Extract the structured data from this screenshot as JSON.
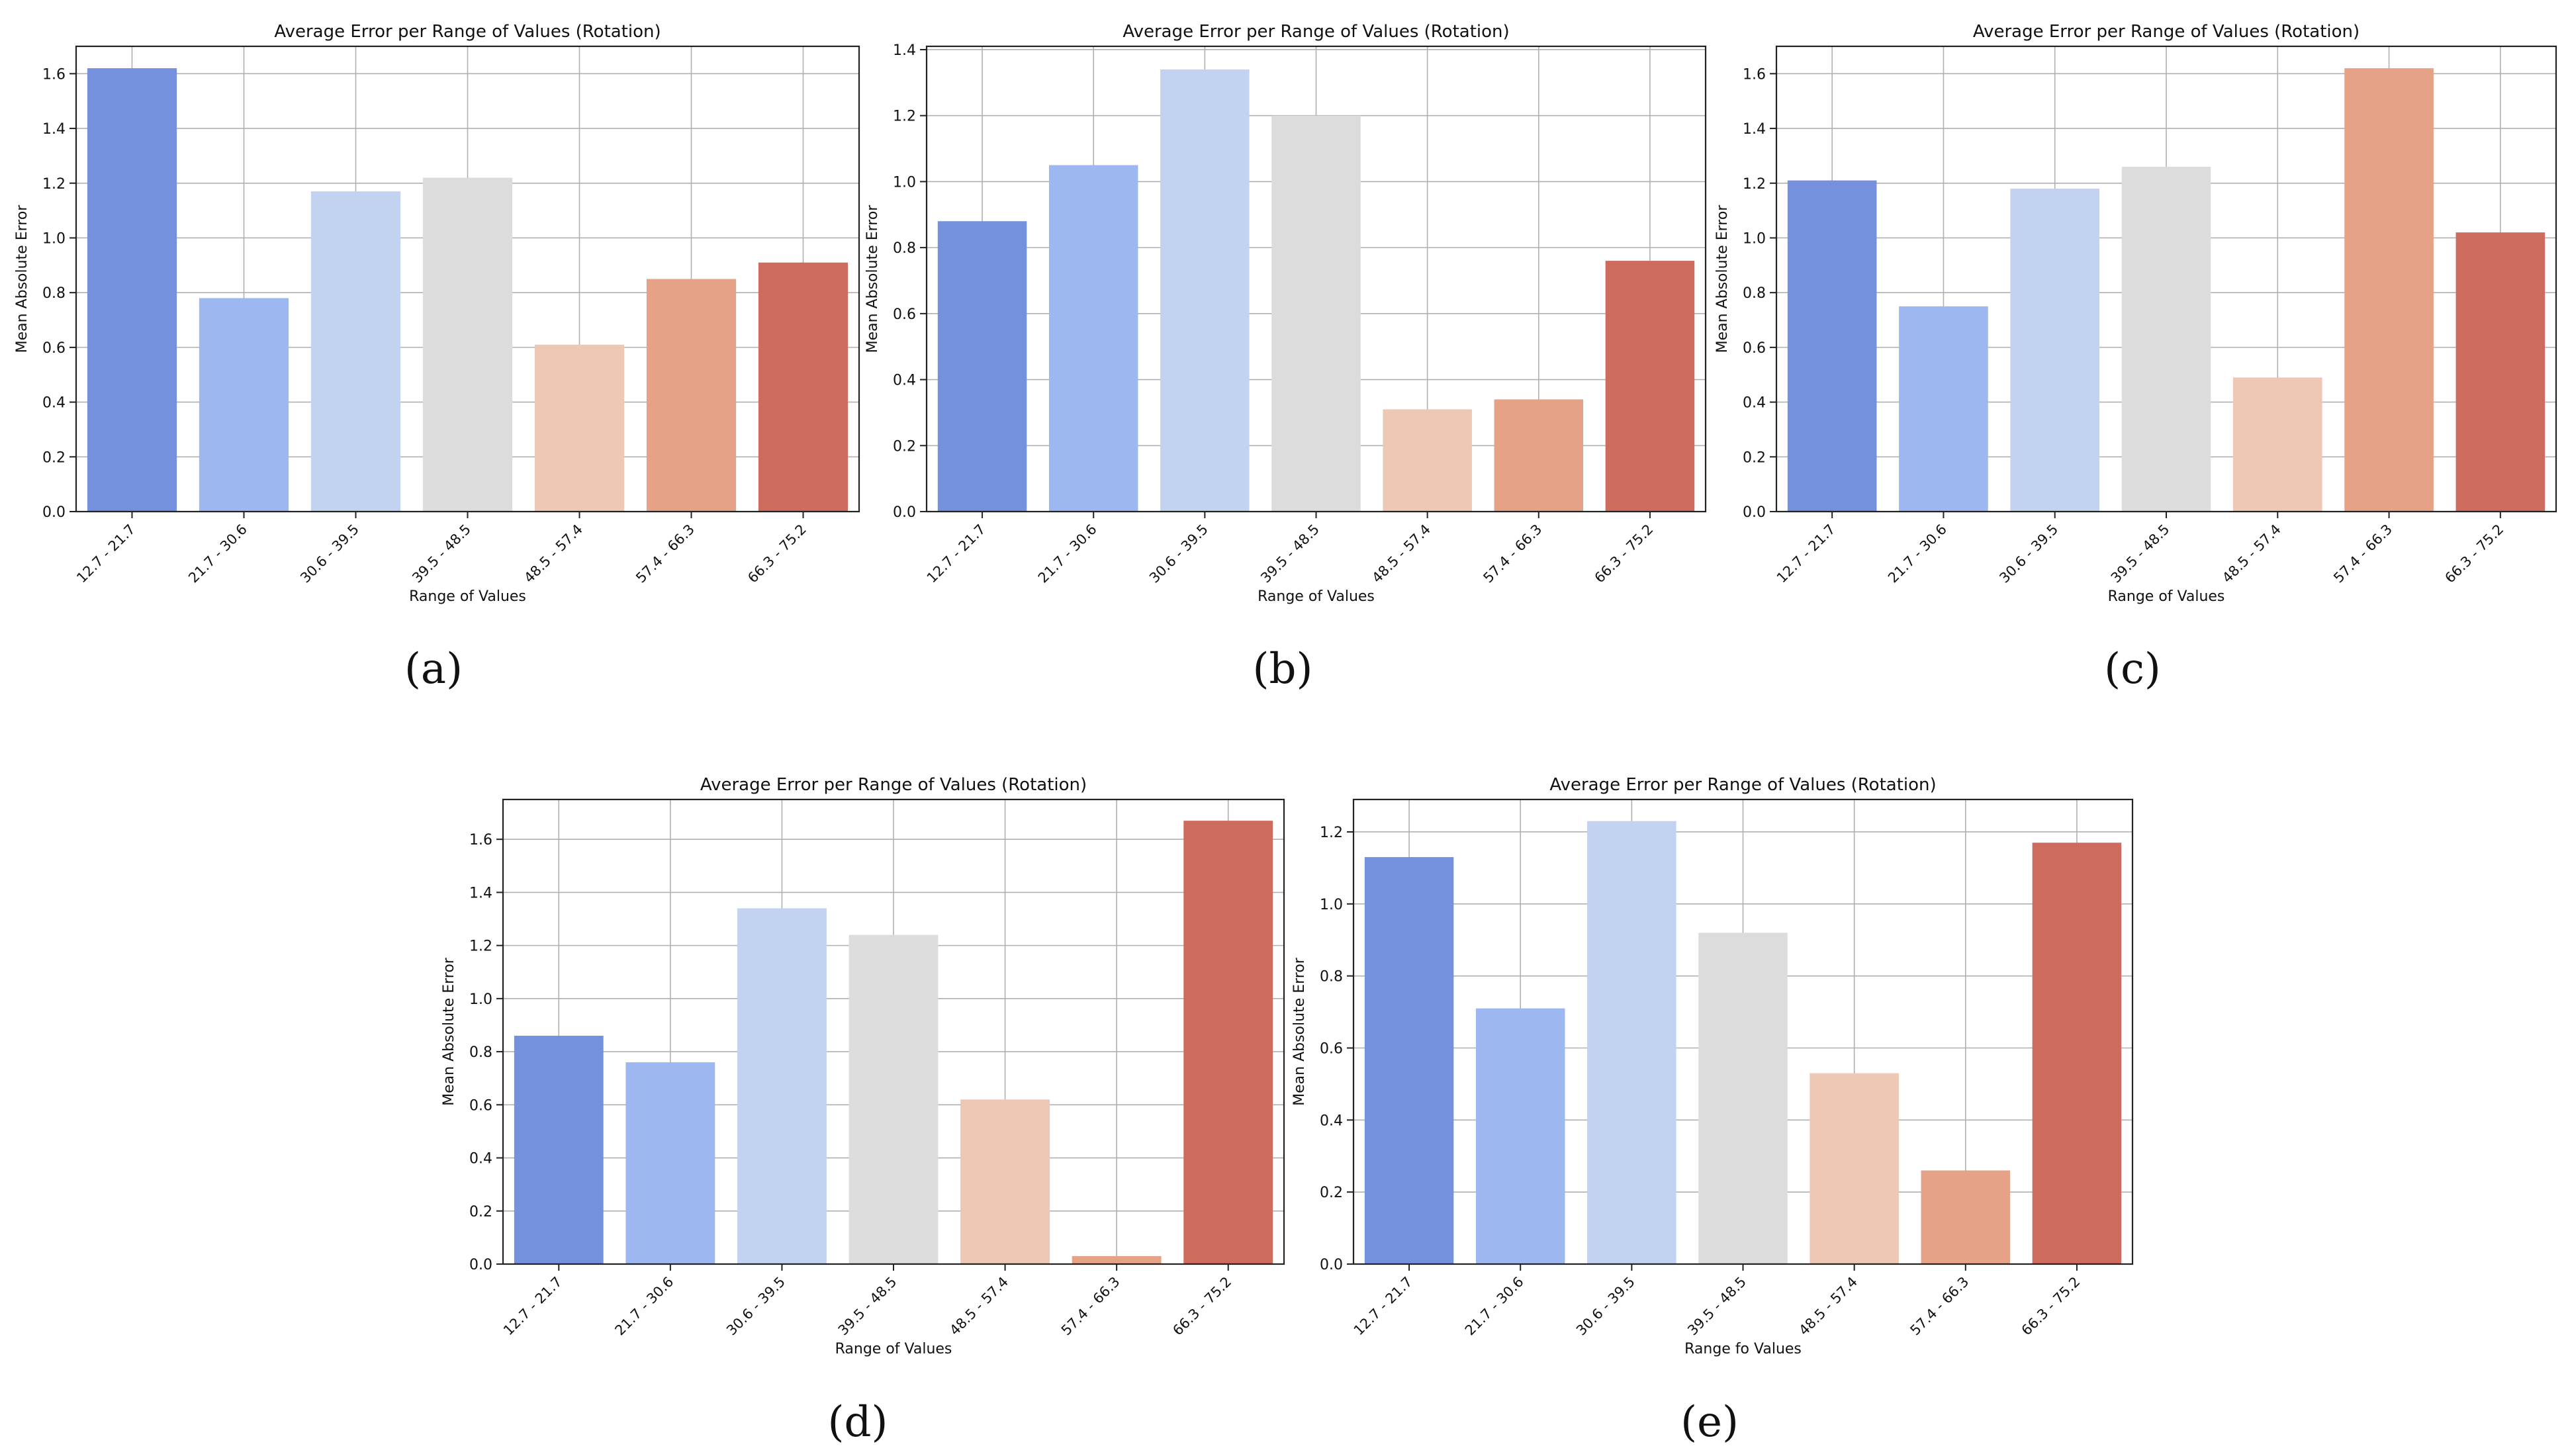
{
  "palette": [
    "#7590dd",
    "#9db7f0",
    "#c1d3f1",
    "#dcdcdc",
    "#ecc8b5",
    "#e5a287",
    "#cd6b5e"
  ],
  "chart_data": [
    {
      "panel": "(a)",
      "type": "bar",
      "title": "Average Error per Range of Values (Rotation)",
      "xlabel": "Range of Values",
      "ylabel": "Mean Absolute Error",
      "categories": [
        "12.7 - 21.7",
        "21.7 - 30.6",
        "30.6 - 39.5",
        "39.5 - 48.5",
        "48.5 - 57.4",
        "57.4 - 66.3",
        "66.3 - 75.2"
      ],
      "values": [
        1.62,
        0.78,
        1.17,
        1.22,
        0.61,
        0.85,
        0.91
      ],
      "ylim": [
        0,
        1.7
      ],
      "yticks": [
        0.0,
        0.2,
        0.4,
        0.6,
        0.8,
        1.0,
        1.2,
        1.4,
        1.6
      ],
      "ytick_labels": [
        "0.0",
        "0.2",
        "0.4",
        "0.6",
        "0.8",
        "1.0",
        "1.2",
        "1.4",
        "1.6"
      ],
      "grid": true
    },
    {
      "panel": "(b)",
      "type": "bar",
      "title": "Average Error per Range of Values (Rotation)",
      "xlabel": "Range of Values",
      "ylabel": "Mean Absolute Error",
      "categories": [
        "12.7 - 21.7",
        "21.7 - 30.6",
        "30.6 - 39.5",
        "39.5 - 48.5",
        "48.5 - 57.4",
        "57.4 - 66.3",
        "66.3 - 75.2"
      ],
      "values": [
        0.88,
        1.05,
        1.34,
        1.2,
        0.31,
        0.34,
        0.76
      ],
      "ylim": [
        0,
        1.41
      ],
      "yticks": [
        0.0,
        0.2,
        0.4,
        0.6,
        0.8,
        1.0,
        1.2,
        1.4
      ],
      "ytick_labels": [
        "0.0",
        "0.2",
        "0.4",
        "0.6",
        "0.8",
        "1.0",
        "1.2",
        "1.4"
      ],
      "grid": true
    },
    {
      "panel": "(c)",
      "type": "bar",
      "title": "Average Error per Range of Values (Rotation)",
      "xlabel": "Range of Values",
      "ylabel": "Mean Absolute Error",
      "categories": [
        "12.7 - 21.7",
        "21.7 - 30.6",
        "30.6 - 39.5",
        "39.5 - 48.5",
        "48.5 - 57.4",
        "57.4 - 66.3",
        "66.3 - 75.2"
      ],
      "values": [
        1.21,
        0.75,
        1.18,
        1.26,
        0.49,
        1.62,
        1.02
      ],
      "ylim": [
        0,
        1.7
      ],
      "yticks": [
        0.0,
        0.2,
        0.4,
        0.6,
        0.8,
        1.0,
        1.2,
        1.4,
        1.6
      ],
      "ytick_labels": [
        "0.0",
        "0.2",
        "0.4",
        "0.6",
        "0.8",
        "1.0",
        "1.2",
        "1.4",
        "1.6"
      ],
      "grid": true
    },
    {
      "panel": "(d)",
      "type": "bar",
      "title": "Average Error per Range of Values (Rotation)",
      "xlabel": "Range of Values",
      "ylabel": "Mean Absolute Error",
      "categories": [
        "12.7 - 21.7",
        "21.7 - 30.6",
        "30.6 - 39.5",
        "39.5 - 48.5",
        "48.5 - 57.4",
        "57.4 - 66.3",
        "66.3 - 75.2"
      ],
      "values": [
        0.86,
        0.76,
        1.34,
        1.24,
        0.62,
        0.03,
        1.67
      ],
      "ylim": [
        0,
        1.75
      ],
      "yticks": [
        0.0,
        0.2,
        0.4,
        0.6,
        0.8,
        1.0,
        1.2,
        1.4,
        1.6
      ],
      "ytick_labels": [
        "0.0",
        "0.2",
        "0.4",
        "0.6",
        "0.8",
        "1.0",
        "1.2",
        "1.4",
        "1.6"
      ],
      "grid": true
    },
    {
      "panel": "(e)",
      "type": "bar",
      "title": "Average Error per Range of Values (Rotation)",
      "xlabel": "Range fo Values",
      "ylabel": "Mean Absolute Error",
      "categories": [
        "12.7 - 21.7",
        "21.7 - 30.6",
        "30.6 - 39.5",
        "39.5 - 48.5",
        "48.5 - 57.4",
        "57.4 - 66.3",
        "66.3 - 75.2"
      ],
      "values": [
        1.13,
        0.71,
        1.23,
        0.92,
        0.53,
        0.26,
        1.17
      ],
      "ylim": [
        0,
        1.29
      ],
      "yticks": [
        0.0,
        0.2,
        0.4,
        0.6,
        0.8,
        1.0,
        1.2
      ],
      "ytick_labels": [
        "0.0",
        "0.2",
        "0.4",
        "0.6",
        "0.8",
        "1.0",
        "1.2"
      ],
      "grid": true
    }
  ]
}
